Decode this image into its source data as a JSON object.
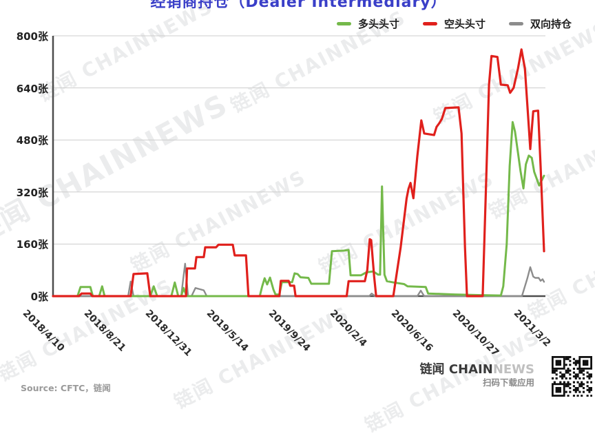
{
  "title": "经销商持仓（Dealer Intermediary）",
  "watermark": "链闻 CHAINNEWS",
  "footer": {
    "source": "Source: CFTC，链闻",
    "brand_prefix": "链闻 ",
    "brand_main": "CHAIN",
    "brand_suffix": "NEWS",
    "qr_caption": "扫码下载应用"
  },
  "colors": {
    "title": "#3a3fc8",
    "grid": "#cccccc",
    "axis": "#4d4d4d",
    "long": "#74b94a",
    "short": "#e0201c",
    "spread": "#8c8c8c"
  },
  "chart_data": {
    "type": "line",
    "title": "经销商持仓（Dealer Intermediary）",
    "unit": "张",
    "ylim": [
      0,
      800
    ],
    "ytick_interval": 160,
    "yticks": [
      "0张",
      "160张",
      "320张",
      "480张",
      "640张",
      "800张"
    ],
    "xticks": [
      "2018/4/10",
      "2018/8/21",
      "2018/12/31",
      "2019/5/14",
      "2019/9/24",
      "2020/2/4",
      "2020/6/16",
      "2020/10/27",
      "2021/3/2"
    ],
    "grid": true,
    "legend_position": "top-right",
    "x_note": "point x values are fractions of the date range 2018/4/10 to 2021/3/2; y values in 张 (contracts)",
    "series": [
      {
        "name": "多头头寸",
        "color": "#74b94a",
        "points": [
          [
            0,
            0
          ],
          [
            0.05,
            0
          ],
          [
            0.056,
            28
          ],
          [
            0.076,
            28
          ],
          [
            0.081,
            0
          ],
          [
            0.094,
            0
          ],
          [
            0.1,
            30
          ],
          [
            0.105,
            0
          ],
          [
            0.198,
            0
          ],
          [
            0.205,
            30
          ],
          [
            0.212,
            0
          ],
          [
            0.241,
            0
          ],
          [
            0.248,
            42
          ],
          [
            0.255,
            0
          ],
          [
            0.261,
            0
          ],
          [
            0.266,
            25
          ],
          [
            0.272,
            0
          ],
          [
            0.421,
            0
          ],
          [
            0.426,
            30
          ],
          [
            0.431,
            55
          ],
          [
            0.436,
            36
          ],
          [
            0.442,
            57
          ],
          [
            0.449,
            20
          ],
          [
            0.453,
            5
          ],
          [
            0.461,
            5
          ],
          [
            0.466,
            43
          ],
          [
            0.487,
            43
          ],
          [
            0.492,
            70
          ],
          [
            0.498,
            68
          ],
          [
            0.504,
            58
          ],
          [
            0.52,
            56
          ],
          [
            0.526,
            38
          ],
          [
            0.562,
            38
          ],
          [
            0.568,
            138
          ],
          [
            0.593,
            140
          ],
          [
            0.602,
            142
          ],
          [
            0.606,
            64
          ],
          [
            0.627,
            64
          ],
          [
            0.638,
            73
          ],
          [
            0.652,
            76
          ],
          [
            0.662,
            66
          ],
          [
            0.666,
            66
          ],
          [
            0.67,
            337
          ],
          [
            0.675,
            66
          ],
          [
            0.68,
            46
          ],
          [
            0.694,
            42
          ],
          [
            0.715,
            37
          ],
          [
            0.722,
            30
          ],
          [
            0.759,
            28
          ],
          [
            0.764,
            8
          ],
          [
            0.818,
            5
          ],
          [
            0.874,
            3
          ],
          [
            0.912,
            2
          ],
          [
            0.917,
            30
          ],
          [
            0.924,
            160
          ],
          [
            0.93,
            400
          ],
          [
            0.936,
            535
          ],
          [
            0.941,
            505
          ],
          [
            0.947,
            440
          ],
          [
            0.952,
            385
          ],
          [
            0.958,
            331
          ],
          [
            0.963,
            405
          ],
          [
            0.969,
            432
          ],
          [
            0.975,
            425
          ],
          [
            0.98,
            382
          ],
          [
            0.99,
            340
          ],
          [
            0.994,
            352
          ],
          [
            1,
            370
          ]
        ]
      },
      {
        "name": "空头头寸",
        "color": "#e0201c",
        "points": [
          [
            0,
            0
          ],
          [
            0.053,
            0
          ],
          [
            0.058,
            8
          ],
          [
            0.076,
            8
          ],
          [
            0.08,
            0
          ],
          [
            0.158,
            0
          ],
          [
            0.164,
            68
          ],
          [
            0.192,
            70
          ],
          [
            0.198,
            0
          ],
          [
            0.271,
            0
          ],
          [
            0.273,
            85
          ],
          [
            0.289,
            85
          ],
          [
            0.292,
            120
          ],
          [
            0.307,
            120
          ],
          [
            0.31,
            150
          ],
          [
            0.332,
            150
          ],
          [
            0.337,
            158
          ],
          [
            0.366,
            158
          ],
          [
            0.37,
            125
          ],
          [
            0.393,
            125
          ],
          [
            0.398,
            0
          ],
          [
            0.461,
            0
          ],
          [
            0.464,
            47
          ],
          [
            0.48,
            47
          ],
          [
            0.483,
            32
          ],
          [
            0.491,
            32
          ],
          [
            0.494,
            0
          ],
          [
            0.598,
            0
          ],
          [
            0.602,
            46
          ],
          [
            0.635,
            46
          ],
          [
            0.64,
            80
          ],
          [
            0.645,
            175
          ],
          [
            0.648,
            172
          ],
          [
            0.654,
            60
          ],
          [
            0.658,
            0
          ],
          [
            0.693,
            0
          ],
          [
            0.708,
            150
          ],
          [
            0.72,
            300
          ],
          [
            0.724,
            330
          ],
          [
            0.728,
            348
          ],
          [
            0.734,
            301
          ],
          [
            0.742,
            430
          ],
          [
            0.75,
            540
          ],
          [
            0.756,
            500
          ],
          [
            0.776,
            495
          ],
          [
            0.781,
            520
          ],
          [
            0.787,
            532
          ],
          [
            0.792,
            545
          ],
          [
            0.799,
            578
          ],
          [
            0.826,
            580
          ],
          [
            0.832,
            500
          ],
          [
            0.839,
            150
          ],
          [
            0.843,
            0
          ],
          [
            0.875,
            0
          ],
          [
            0.881,
            300
          ],
          [
            0.888,
            650
          ],
          [
            0.893,
            738
          ],
          [
            0.905,
            735
          ],
          [
            0.912,
            650
          ],
          [
            0.926,
            648
          ],
          [
            0.931,
            625
          ],
          [
            0.938,
            640
          ],
          [
            0.947,
            700
          ],
          [
            0.954,
            758
          ],
          [
            0.961,
            700
          ],
          [
            0.969,
            520
          ],
          [
            0.972,
            452
          ],
          [
            0.978,
            568
          ],
          [
            0.988,
            570
          ],
          [
            0.993,
            400
          ],
          [
            1,
            138
          ]
        ]
      },
      {
        "name": "双向持仓",
        "color": "#8c8c8c",
        "points": [
          [
            0,
            0
          ],
          [
            0.153,
            0
          ],
          [
            0.158,
            45
          ],
          [
            0.164,
            0
          ],
          [
            0.261,
            0
          ],
          [
            0.265,
            50
          ],
          [
            0.269,
            100
          ],
          [
            0.275,
            0
          ],
          [
            0.282,
            0
          ],
          [
            0.29,
            25
          ],
          [
            0.307,
            18
          ],
          [
            0.313,
            0
          ],
          [
            0.644,
            0
          ],
          [
            0.649,
            8
          ],
          [
            0.656,
            0
          ],
          [
            0.742,
            0
          ],
          [
            0.749,
            17
          ],
          [
            0.756,
            0
          ],
          [
            0.955,
            0
          ],
          [
            0.966,
            55
          ],
          [
            0.972,
            89
          ],
          [
            0.978,
            60
          ],
          [
            0.982,
            56
          ],
          [
            0.989,
            56
          ],
          [
            0.993,
            47
          ],
          [
            0.997,
            52
          ],
          [
            1,
            44
          ]
        ]
      }
    ]
  }
}
